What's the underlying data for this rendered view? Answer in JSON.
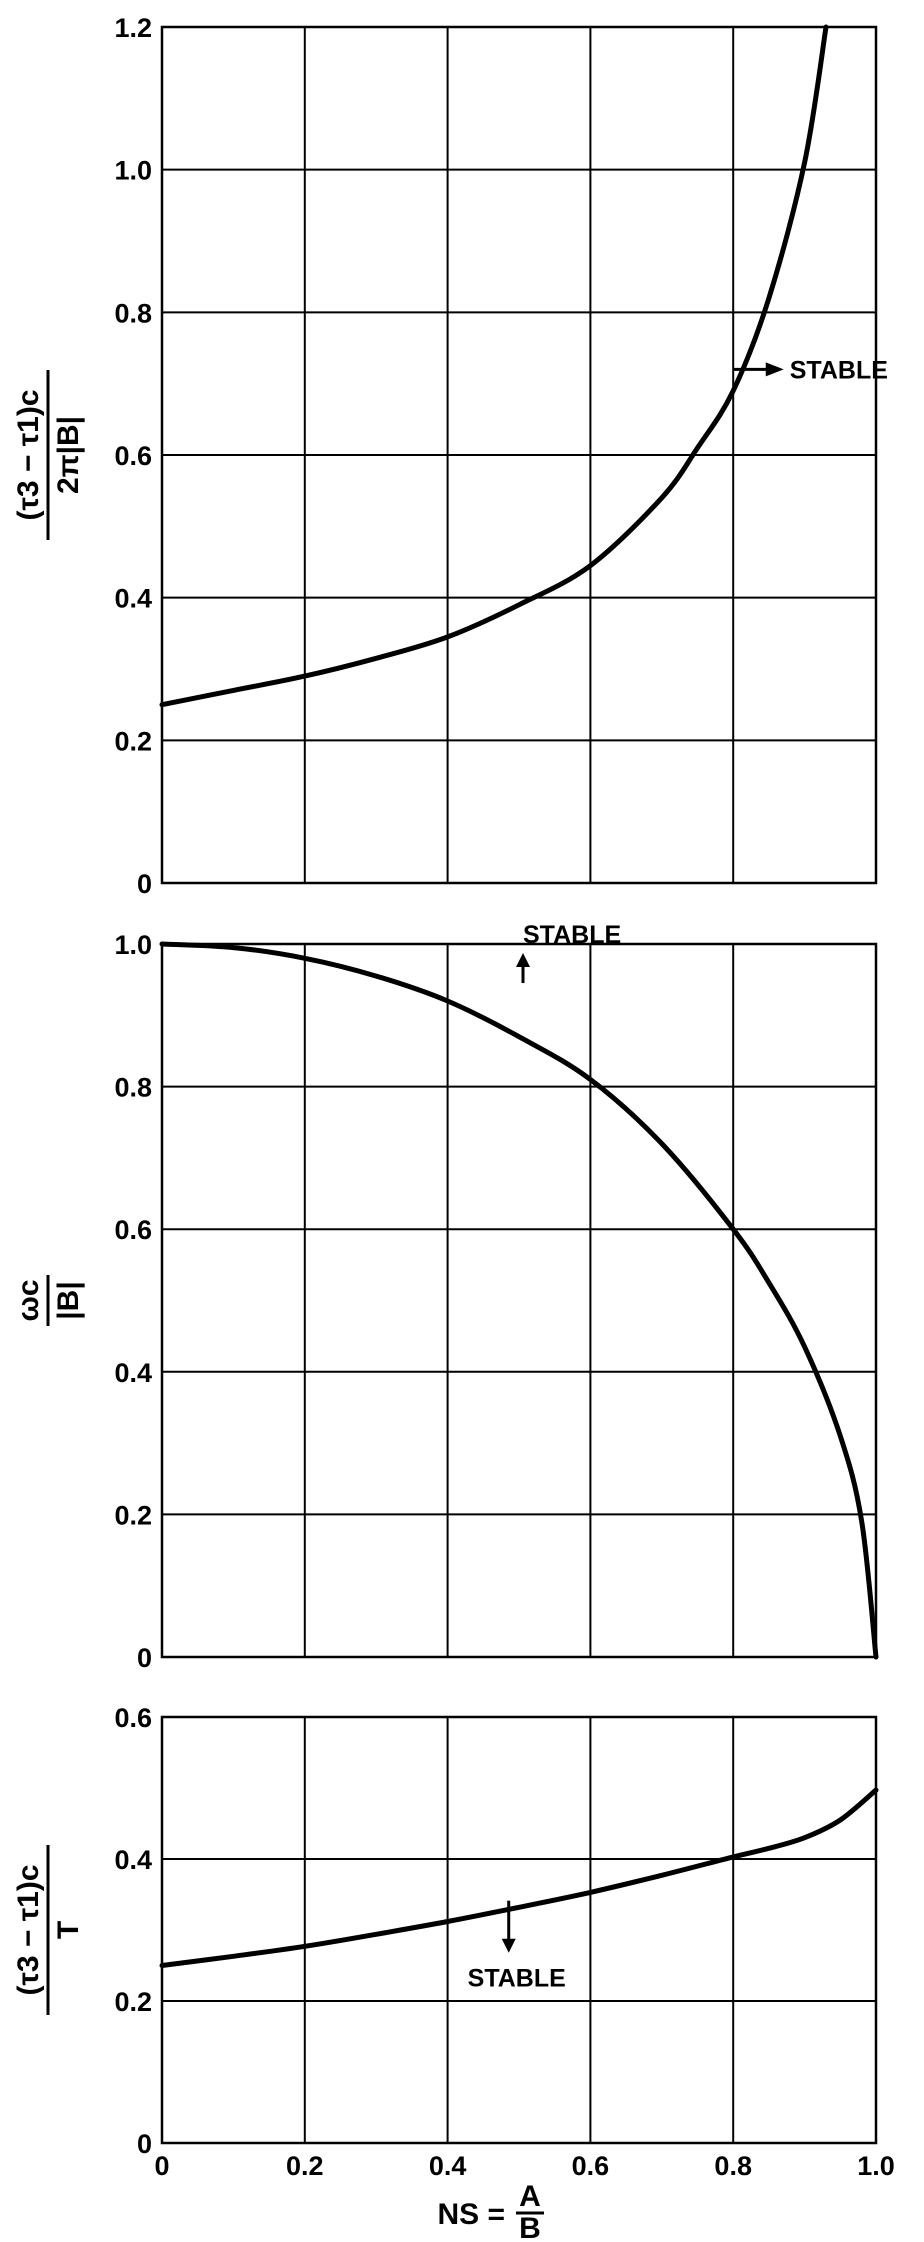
{
  "chart_data": [
    {
      "type": "line",
      "panel": "top",
      "title": "",
      "xlabel": "",
      "ylabel_parts": {
        "num": "(τ3 − τ1)c",
        "den": "2π|B|"
      },
      "xlim": [
        0,
        1.0
      ],
      "ylim": [
        0,
        1.2
      ],
      "x_ticks": [
        0,
        0.2,
        0.4,
        0.6,
        0.8,
        1.0
      ],
      "y_ticks": [
        0,
        0.2,
        0.4,
        0.6,
        0.8,
        1.0,
        1.2
      ],
      "y_tick_labels": [
        "0",
        "0.2",
        "0.4",
        "0.6",
        "0.8",
        "1.0",
        "1.2"
      ],
      "grid": true,
      "series": [
        {
          "x": [
            0,
            0.1,
            0.2,
            0.3,
            0.4,
            0.5,
            0.6,
            0.7,
            0.75,
            0.8,
            0.85,
            0.9,
            0.93
          ],
          "values": [
            0.25,
            0.27,
            0.29,
            0.315,
            0.345,
            0.39,
            0.445,
            0.54,
            0.61,
            0.69,
            0.82,
            1.01,
            1.2
          ]
        }
      ],
      "annotations": [
        {
          "text": "STABLE",
          "arrow": "right",
          "x": 0.84,
          "y": 0.72
        }
      ]
    },
    {
      "type": "line",
      "panel": "middle",
      "title": "",
      "xlabel": "",
      "ylabel_parts": {
        "num": "ωc",
        "den": "|B|"
      },
      "xlim": [
        0,
        1.0
      ],
      "ylim": [
        0,
        1.0
      ],
      "x_ticks": [
        0,
        0.2,
        0.4,
        0.6,
        0.8,
        1.0
      ],
      "y_ticks": [
        0,
        0.2,
        0.4,
        0.6,
        0.8,
        1.0
      ],
      "y_tick_labels": [
        "0",
        "0.2",
        "0.4",
        "0.6",
        "0.8",
        "1.0"
      ],
      "grid": true,
      "series": [
        {
          "x": [
            0,
            0.1,
            0.2,
            0.3,
            0.4,
            0.5,
            0.6,
            0.7,
            0.8,
            0.85,
            0.9,
            0.95,
            0.98,
            1.0
          ],
          "values": [
            1.0,
            0.995,
            0.98,
            0.955,
            0.92,
            0.87,
            0.81,
            0.72,
            0.6,
            0.525,
            0.435,
            0.31,
            0.19,
            0.0
          ]
        }
      ],
      "annotations": [
        {
          "text": "STABLE",
          "arrow": "up",
          "x": 0.5,
          "y": 0.92
        }
      ]
    },
    {
      "type": "line",
      "panel": "bottom",
      "title": "",
      "xlabel_parts": {
        "lhs": "NS",
        "num": "A",
        "den": "B"
      },
      "ylabel_parts": {
        "num": "(τ3 − τ1)c",
        "den": "T"
      },
      "xlim": [
        0,
        1.0
      ],
      "ylim": [
        0,
        0.6
      ],
      "x_ticks": [
        0,
        0.2,
        0.4,
        0.6,
        0.8,
        1.0
      ],
      "x_tick_labels": [
        "0",
        "0.2",
        "0.4",
        "0.6",
        "0.8",
        "1.0"
      ],
      "y_ticks": [
        0,
        0.2,
        0.4,
        0.6
      ],
      "y_tick_labels": [
        "0",
        "0.2",
        "0.4",
        "0.6"
      ],
      "grid": true,
      "series": [
        {
          "x": [
            0,
            0.1,
            0.2,
            0.3,
            0.4,
            0.5,
            0.6,
            0.7,
            0.8,
            0.85,
            0.9,
            0.95,
            1.0
          ],
          "values": [
            0.25,
            0.263,
            0.277,
            0.294,
            0.312,
            0.332,
            0.353,
            0.377,
            0.403,
            0.415,
            0.43,
            0.455,
            0.497
          ]
        }
      ],
      "annotations": [
        {
          "text": "STABLE",
          "arrow": "down",
          "x": 0.48,
          "y": 0.33
        }
      ]
    }
  ]
}
